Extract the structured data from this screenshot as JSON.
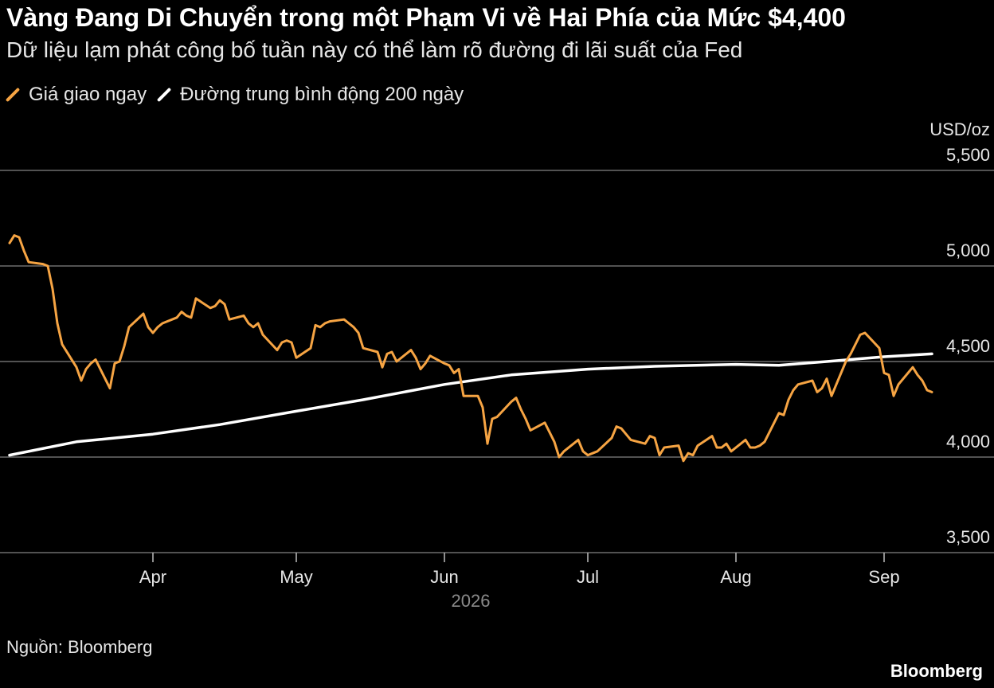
{
  "chart_data": {
    "type": "line",
    "title": "Vàng Đang Di Chuyển trong một Phạm Vi về Hai Phía của Mức $4,400",
    "subtitle": "Dữ liệu lạm phát công bố tuần này có thể làm rõ đường đi lãi suất của Fed",
    "unit_label": "USD/oz",
    "year_label": "2026",
    "y_ticks": [
      "5,500",
      "5,000",
      "4,500",
      "4,000",
      "3,500"
    ],
    "y_tick_values": [
      5500,
      5000,
      4500,
      4000,
      3500
    ],
    "ylim": [
      3500,
      5500
    ],
    "x_range": [
      "2026-03-02",
      "2026-09-11"
    ],
    "x_ticks": [
      {
        "label": "Apr",
        "date": "2026-04-01"
      },
      {
        "label": "May",
        "date": "2026-05-01"
      },
      {
        "label": "Jun",
        "date": "2026-06-01"
      },
      {
        "label": "Jul",
        "date": "2026-07-01"
      },
      {
        "label": "Aug",
        "date": "2026-08-01"
      },
      {
        "label": "Sep",
        "date": "2026-09-01"
      }
    ],
    "grid": true,
    "legend_position": "top-left",
    "series": [
      {
        "name": "Giá giao ngay",
        "color": "#f6a443",
        "points": [
          [
            "2026-03-02",
            5120
          ],
          [
            "2026-03-03",
            5160
          ],
          [
            "2026-03-04",
            5150
          ],
          [
            "2026-03-05",
            5080
          ],
          [
            "2026-03-06",
            5020
          ],
          [
            "2026-03-09",
            5010
          ],
          [
            "2026-03-10",
            5000
          ],
          [
            "2026-03-11",
            4880
          ],
          [
            "2026-03-12",
            4700
          ],
          [
            "2026-03-13",
            4590
          ],
          [
            "2026-03-16",
            4470
          ],
          [
            "2026-03-17",
            4400
          ],
          [
            "2026-03-18",
            4460
          ],
          [
            "2026-03-19",
            4490
          ],
          [
            "2026-03-20",
            4510
          ],
          [
            "2026-03-23",
            4360
          ],
          [
            "2026-03-24",
            4490
          ],
          [
            "2026-03-25",
            4500
          ],
          [
            "2026-03-26",
            4580
          ],
          [
            "2026-03-27",
            4680
          ],
          [
            "2026-03-30",
            4750
          ],
          [
            "2026-03-31",
            4680
          ],
          [
            "2026-04-01",
            4650
          ],
          [
            "2026-04-02",
            4680
          ],
          [
            "2026-04-03",
            4700
          ],
          [
            "2026-04-06",
            4730
          ],
          [
            "2026-04-07",
            4760
          ],
          [
            "2026-04-08",
            4740
          ],
          [
            "2026-04-09",
            4730
          ],
          [
            "2026-04-10",
            4830
          ],
          [
            "2026-04-13",
            4780
          ],
          [
            "2026-04-14",
            4790
          ],
          [
            "2026-04-15",
            4820
          ],
          [
            "2026-04-16",
            4800
          ],
          [
            "2026-04-17",
            4720
          ],
          [
            "2026-04-20",
            4740
          ],
          [
            "2026-04-21",
            4700
          ],
          [
            "2026-04-22",
            4680
          ],
          [
            "2026-04-23",
            4700
          ],
          [
            "2026-04-24",
            4640
          ],
          [
            "2026-04-27",
            4560
          ],
          [
            "2026-04-28",
            4600
          ],
          [
            "2026-04-29",
            4610
          ],
          [
            "2026-04-30",
            4600
          ],
          [
            "2026-05-01",
            4520
          ],
          [
            "2026-05-04",
            4570
          ],
          [
            "2026-05-05",
            4690
          ],
          [
            "2026-05-06",
            4680
          ],
          [
            "2026-05-07",
            4700
          ],
          [
            "2026-05-08",
            4710
          ],
          [
            "2026-05-11",
            4720
          ],
          [
            "2026-05-12",
            4700
          ],
          [
            "2026-05-13",
            4680
          ],
          [
            "2026-05-14",
            4650
          ],
          [
            "2026-05-15",
            4570
          ],
          [
            "2026-05-18",
            4550
          ],
          [
            "2026-05-19",
            4470
          ],
          [
            "2026-05-20",
            4540
          ],
          [
            "2026-05-21",
            4550
          ],
          [
            "2026-05-22",
            4500
          ],
          [
            "2026-05-25",
            4560
          ],
          [
            "2026-05-26",
            4520
          ],
          [
            "2026-05-27",
            4460
          ],
          [
            "2026-05-28",
            4490
          ],
          [
            "2026-05-29",
            4530
          ],
          [
            "2026-06-01",
            4490
          ],
          [
            "2026-06-02",
            4480
          ],
          [
            "2026-06-03",
            4440
          ],
          [
            "2026-06-04",
            4460
          ],
          [
            "2026-06-05",
            4320
          ],
          [
            "2026-06-08",
            4320
          ],
          [
            "2026-06-09",
            4260
          ],
          [
            "2026-06-10",
            4070
          ],
          [
            "2026-06-11",
            4200
          ],
          [
            "2026-06-12",
            4210
          ],
          [
            "2026-06-15",
            4290
          ],
          [
            "2026-06-16",
            4310
          ],
          [
            "2026-06-17",
            4250
          ],
          [
            "2026-06-18",
            4200
          ],
          [
            "2026-06-19",
            4140
          ],
          [
            "2026-06-22",
            4180
          ],
          [
            "2026-06-23",
            4130
          ],
          [
            "2026-06-24",
            4080
          ],
          [
            "2026-06-25",
            4000
          ],
          [
            "2026-06-26",
            4030
          ],
          [
            "2026-06-29",
            4090
          ],
          [
            "2026-06-30",
            4030
          ],
          [
            "2026-07-01",
            4010
          ],
          [
            "2026-07-02",
            4020
          ],
          [
            "2026-07-03",
            4030
          ],
          [
            "2026-07-06",
            4100
          ],
          [
            "2026-07-07",
            4160
          ],
          [
            "2026-07-08",
            4150
          ],
          [
            "2026-07-09",
            4120
          ],
          [
            "2026-07-10",
            4090
          ],
          [
            "2026-07-13",
            4070
          ],
          [
            "2026-07-14",
            4110
          ],
          [
            "2026-07-15",
            4100
          ],
          [
            "2026-07-16",
            4010
          ],
          [
            "2026-07-17",
            4050
          ],
          [
            "2026-07-20",
            4060
          ],
          [
            "2026-07-21",
            3980
          ],
          [
            "2026-07-22",
            4020
          ],
          [
            "2026-07-23",
            4010
          ],
          [
            "2026-07-24",
            4060
          ],
          [
            "2026-07-27",
            4110
          ],
          [
            "2026-07-28",
            4050
          ],
          [
            "2026-07-29",
            4050
          ],
          [
            "2026-07-30",
            4070
          ],
          [
            "2026-07-31",
            4030
          ],
          [
            "2026-08-03",
            4090
          ],
          [
            "2026-08-04",
            4050
          ],
          [
            "2026-08-05",
            4050
          ],
          [
            "2026-08-06",
            4060
          ],
          [
            "2026-08-07",
            4080
          ],
          [
            "2026-08-10",
            4230
          ],
          [
            "2026-08-11",
            4220
          ],
          [
            "2026-08-12",
            4300
          ],
          [
            "2026-08-13",
            4350
          ],
          [
            "2026-08-14",
            4380
          ],
          [
            "2026-08-17",
            4400
          ],
          [
            "2026-08-18",
            4340
          ],
          [
            "2026-08-19",
            4360
          ],
          [
            "2026-08-20",
            4410
          ],
          [
            "2026-08-21",
            4320
          ],
          [
            "2026-08-24",
            4500
          ],
          [
            "2026-08-25",
            4540
          ],
          [
            "2026-08-26",
            4590
          ],
          [
            "2026-08-27",
            4640
          ],
          [
            "2026-08-28",
            4650
          ],
          [
            "2026-08-31",
            4570
          ],
          [
            "2026-09-01",
            4440
          ],
          [
            "2026-09-02",
            4430
          ],
          [
            "2026-09-03",
            4320
          ],
          [
            "2026-09-04",
            4380
          ],
          [
            "2026-09-07",
            4470
          ],
          [
            "2026-09-08",
            4430
          ],
          [
            "2026-09-09",
            4400
          ],
          [
            "2026-09-10",
            4350
          ],
          [
            "2026-09-11",
            4340
          ]
        ]
      },
      {
        "name": "Đường trung bình động 200 ngày",
        "color": "#ffffff",
        "points": [
          [
            "2026-03-02",
            4010
          ],
          [
            "2026-03-16",
            4080
          ],
          [
            "2026-04-01",
            4120
          ],
          [
            "2026-04-15",
            4170
          ],
          [
            "2026-05-01",
            4240
          ],
          [
            "2026-05-15",
            4300
          ],
          [
            "2026-06-01",
            4380
          ],
          [
            "2026-06-15",
            4430
          ],
          [
            "2026-07-01",
            4460
          ],
          [
            "2026-07-15",
            4475
          ],
          [
            "2026-08-01",
            4485
          ],
          [
            "2026-08-10",
            4480
          ],
          [
            "2026-08-20",
            4500
          ],
          [
            "2026-09-01",
            4525
          ],
          [
            "2026-09-11",
            4540
          ]
        ]
      }
    ]
  },
  "footer": {
    "source": "Nguồn: Bloomberg",
    "brand": "Bloomberg"
  }
}
